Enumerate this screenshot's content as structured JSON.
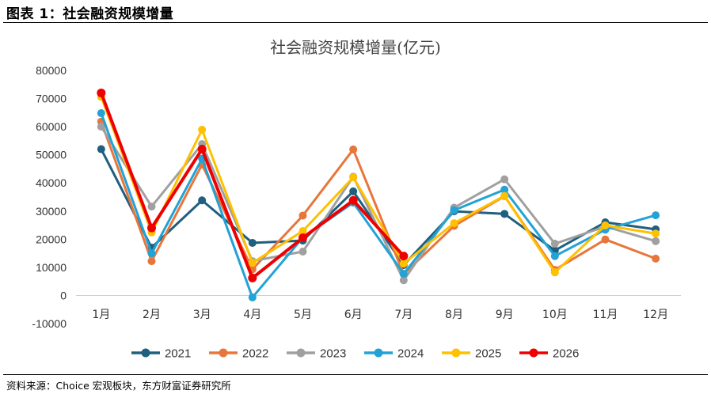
{
  "header": {
    "title": "图表 1：社会融资规模增量"
  },
  "footer": {
    "source": "资料来源：Choice 宏观板块，东方财富证券研究所"
  },
  "chart_data": {
    "type": "line",
    "title": "社会融资规模增量(亿元)",
    "xlabel": "",
    "ylabel": "",
    "categories": [
      "1月",
      "2月",
      "3月",
      "4月",
      "5月",
      "6月",
      "7月",
      "8月",
      "9月",
      "10月",
      "11月",
      "12月"
    ],
    "ylim": [
      -10000,
      80000
    ],
    "yticks": [
      -10000,
      0,
      10000,
      20000,
      30000,
      40000,
      50000,
      60000,
      70000,
      80000
    ],
    "grid": false,
    "legend_position": "bottom",
    "series": [
      {
        "name": "2021",
        "color": "#1f5f7f",
        "values": [
          52000,
          17000,
          33800,
          18700,
          19500,
          37000,
          10800,
          29900,
          29000,
          16000,
          26000,
          23500
        ]
      },
      {
        "name": "2022",
        "color": "#e8763a",
        "values": [
          61800,
          12200,
          46500,
          9300,
          28400,
          51900,
          7600,
          24700,
          35300,
          9100,
          19900,
          13100
        ]
      },
      {
        "name": "2023",
        "color": "#a0a0a0",
        "values": [
          60000,
          31600,
          53800,
          12200,
          15600,
          42200,
          5400,
          31200,
          41300,
          18400,
          24500,
          19300
        ]
      },
      {
        "name": "2024",
        "color": "#22a2d6",
        "values": [
          64800,
          15000,
          48600,
          -700,
          20600,
          33000,
          7700,
          30300,
          37600,
          14000,
          23400,
          28500
        ]
      },
      {
        "name": "2025",
        "color": "#ffc000",
        "values": [
          70600,
          22400,
          58900,
          11600,
          22900,
          42000,
          11300,
          25700,
          35400,
          8200,
          24900,
          22000
        ]
      },
      {
        "name": "2026",
        "color": "#ee0000",
        "values": [
          72000,
          24000,
          52000,
          6200,
          20500,
          33800,
          14000,
          null,
          null,
          null,
          null,
          null
        ]
      }
    ]
  }
}
